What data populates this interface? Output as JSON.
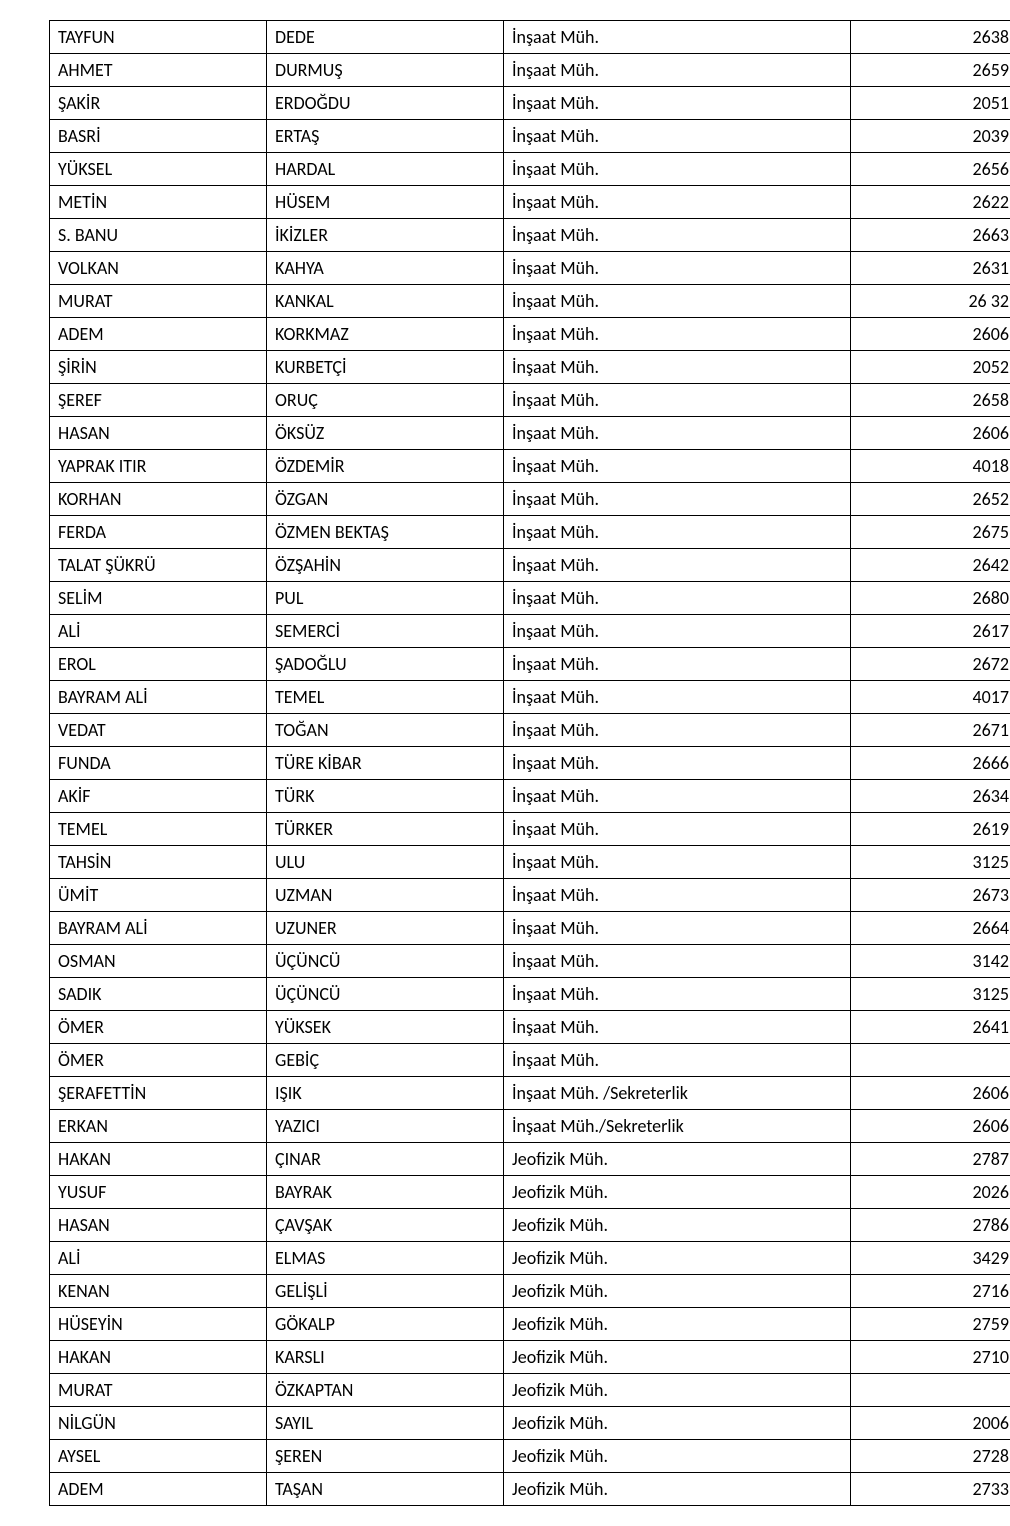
{
  "rows": [
    {
      "first": "TAYFUN",
      "last": "DEDE",
      "dept": "İnşaat Müh.",
      "num": "2638"
    },
    {
      "first": "AHMET",
      "last": "DURMUŞ",
      "dept": "İnşaat Müh.",
      "num": "2659"
    },
    {
      "first": "ŞAKİR",
      "last": "ERDOĞDU",
      "dept": "İnşaat Müh.",
      "num": "2051"
    },
    {
      "first": "BASRİ",
      "last": "ERTAŞ",
      "dept": "İnşaat Müh.",
      "num": "2039"
    },
    {
      "first": "YÜKSEL",
      "last": "HARDAL",
      "dept": "İnşaat Müh.",
      "num": "2656"
    },
    {
      "first": "METİN",
      "last": "HÜSEM",
      "dept": "İnşaat Müh.",
      "num": "2622"
    },
    {
      "first": "S. BANU",
      "last": "İKİZLER",
      "dept": "İnşaat Müh.",
      "num": "2663"
    },
    {
      "first": "VOLKAN",
      "last": "KAHYA",
      "dept": "İnşaat Müh.",
      "num": "2631"
    },
    {
      "first": "MURAT",
      "last": "KANKAL",
      "dept": "İnşaat Müh.",
      "num": "26 32"
    },
    {
      "first": "ADEM",
      "last": "KORKMAZ",
      "dept": "İnşaat Müh.",
      "num": "2606"
    },
    {
      "first": "ŞİRİN",
      "last": "KURBETÇİ",
      "dept": "İnşaat Müh.",
      "num": "2052"
    },
    {
      "first": "ŞEREF",
      "last": "ORUÇ",
      "dept": "İnşaat Müh.",
      "num": "2658"
    },
    {
      "first": "HASAN",
      "last": "ÖKSÜZ",
      "dept": "İnşaat Müh.",
      "num": "2606"
    },
    {
      "first": "YAPRAK ITIR",
      "last": "ÖZDEMİR",
      "dept": "İnşaat Müh.",
      "num": "4018"
    },
    {
      "first": "KORHAN",
      "last": "ÖZGAN",
      "dept": "İnşaat Müh.",
      "num": "2652"
    },
    {
      "first": "FERDA",
      "last": "ÖZMEN BEKTAŞ",
      "dept": "İnşaat Müh.",
      "num": "2675"
    },
    {
      "first": "TALAT ŞÜKRÜ",
      "last": "ÖZŞAHİN",
      "dept": "İnşaat Müh.",
      "num": "2642"
    },
    {
      "first": "SELİM",
      "last": "PUL",
      "dept": "İnşaat Müh.",
      "num": "2680"
    },
    {
      "first": "ALİ",
      "last": "SEMERCİ",
      "dept": "İnşaat Müh.",
      "num": "2617"
    },
    {
      "first": "EROL",
      "last": "ŞADOĞLU",
      "dept": "İnşaat Müh.",
      "num": "2672"
    },
    {
      "first": "BAYRAM ALİ",
      "last": "TEMEL",
      "dept": "İnşaat Müh.",
      "num": "4017"
    },
    {
      "first": "VEDAT",
      "last": "TOĞAN",
      "dept": "İnşaat Müh.",
      "num": "2671"
    },
    {
      "first": "FUNDA",
      "last": "TÜRE KİBAR",
      "dept": "İnşaat Müh.",
      "num": "2666"
    },
    {
      "first": "AKİF",
      "last": "TÜRK",
      "dept": "İnşaat Müh.",
      "num": "2634"
    },
    {
      "first": "TEMEL",
      "last": "TÜRKER",
      "dept": "İnşaat Müh.",
      "num": "2619"
    },
    {
      "first": "TAHSİN",
      "last": "ULU",
      "dept": "İnşaat Müh.",
      "num": "3125"
    },
    {
      "first": "ÜMİT",
      "last": "UZMAN",
      "dept": "İnşaat Müh.",
      "num": "2673"
    },
    {
      "first": "BAYRAM ALİ",
      "last": "UZUNER",
      "dept": "İnşaat Müh.",
      "num": "2664"
    },
    {
      "first": "OSMAN",
      "last": "ÜÇÜNCÜ",
      "dept": "İnşaat Müh.",
      "num": "3142"
    },
    {
      "first": "SADIK",
      "last": "ÜÇÜNCÜ",
      "dept": "İnşaat Müh.",
      "num": "3125"
    },
    {
      "first": "ÖMER",
      "last": "YÜKSEK",
      "dept": "İnşaat Müh.",
      "num": "2641"
    },
    {
      "first": "ÖMER",
      "last": "GEBİÇ",
      "dept": "İnşaat Müh.",
      "num": ""
    },
    {
      "first": "ŞERAFETTİN",
      "last": "IŞIK",
      "dept": "İnşaat Müh. /Sekreterlik",
      "num": "2606"
    },
    {
      "first": "ERKAN",
      "last": "YAZICI",
      "dept": "İnşaat Müh./Sekreterlik",
      "num": "2606"
    },
    {
      "first": "HAKAN",
      "last": "ÇINAR",
      "dept": "Jeofizik  Müh.",
      "num": "2787"
    },
    {
      "first": "YUSUF",
      "last": "BAYRAK",
      "dept": "Jeofizik Müh.",
      "num": "2026"
    },
    {
      "first": "HASAN",
      "last": "ÇAVŞAK",
      "dept": "Jeofizik Müh.",
      "num": "2786"
    },
    {
      "first": "ALİ",
      "last": "ELMAS",
      "dept": "Jeofizik Müh.",
      "num": "3429"
    },
    {
      "first": "KENAN",
      "last": "GELİŞLİ",
      "dept": "Jeofizik Müh.",
      "num": "2716"
    },
    {
      "first": "HÜSEYİN",
      "last": "GÖKALP",
      "dept": "Jeofizik Müh.",
      "num": "2759"
    },
    {
      "first": "HAKAN",
      "last": "KARSLI",
      "dept": "Jeofizik Müh.",
      "num": "2710"
    },
    {
      "first": "MURAT",
      "last": "ÖZKAPTAN",
      "dept": "Jeofizik Müh.",
      "num": ""
    },
    {
      "first": "NİLGÜN",
      "last": "SAYIL",
      "dept": "Jeofizik Müh.",
      "num": "2006"
    },
    {
      "first": "AYSEL",
      "last": "ŞEREN",
      "dept": "Jeofizik Müh.",
      "num": "2728"
    },
    {
      "first": "ADEM",
      "last": "TAŞAN",
      "dept": "Jeofizik Müh.",
      "num": "2733"
    }
  ]
}
